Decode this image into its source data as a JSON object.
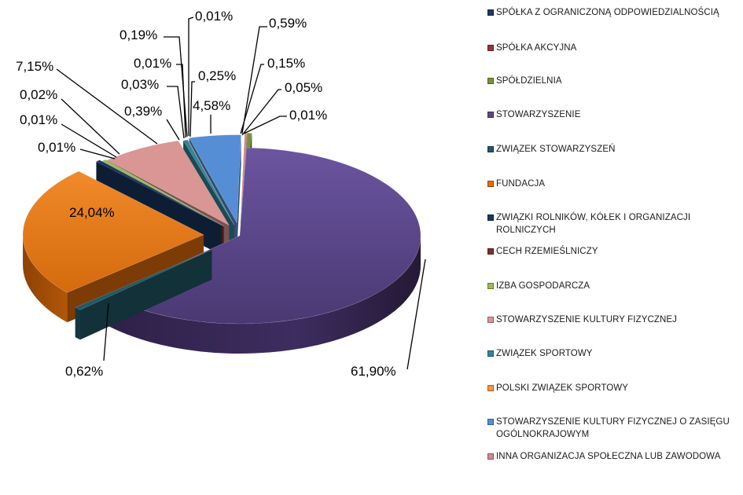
{
  "chart_data": {
    "type": "pie",
    "title": "",
    "legend_position": "right",
    "three_d": true,
    "exploded": true,
    "slices": [
      {
        "name": "SPÓŁKA Z OGRANICZONĄ ODPOWIEDZIALNOŚCIĄ",
        "value": 0.01,
        "label": "0,01%",
        "color": "#1F3864"
      },
      {
        "name": "SPÓŁKA AKCYJNA",
        "value": 0.02,
        "label": "0,02%",
        "color": "#943634"
      },
      {
        "name": "SPÓŁDZIELNIA",
        "value": 0.01,
        "label": "0,01%",
        "color": "#76923C"
      },
      {
        "name": "STOWARZYSZENIE",
        "value": 61.9,
        "label": "61,90%",
        "color": "#5F497A"
      },
      {
        "name": "ZWIĄZEK STOWARZYSZEŃ",
        "value": 0.62,
        "label": "0,62%",
        "color": "#215967"
      },
      {
        "name": "FUNDACJA",
        "value": 24.04,
        "label": "24,04%",
        "color": "#E46C0A"
      },
      {
        "name": "ZWIĄZKI ROLNIKÓW, KÓŁEK I ORGANIZACJI ROLNICZYCH",
        "value": 0.01,
        "label": "0,01%",
        "color": "#17375E"
      },
      {
        "name": "CECH RZEMIEŚLNICZY",
        "value": 0.39,
        "label": "0,39%",
        "color": "#7F2F2C"
      },
      {
        "name": "IZBA GOSPODARCZA",
        "value": 0.01,
        "label": "0,01%",
        "color": "#9BBB59"
      },
      {
        "name": "STOWARZYSZENIE KULTURY FIZYCZNEJ",
        "value": 7.15,
        "label": "7,15%",
        "color": "#D99694"
      },
      {
        "name": "ZWIĄZEK SPORTOWY",
        "value": 0.03,
        "label": "0,03%",
        "color": "#31859C"
      },
      {
        "name": "POLSKI ZWIĄZEK SPORTOWY",
        "value": 0.25,
        "label": "0,25%",
        "color": "#F79646"
      },
      {
        "name": "STOWARZYSZENIE KULTURY FIZYCZNEJ O ZASIĘGU OGÓLNOKRAJOWYM",
        "value": 4.58,
        "label": "4,58%",
        "color": "#558ED5"
      },
      {
        "name": "INNA ORGANIZACJA SPOŁECZNA LUB ZAWODOWA",
        "value": 0.19,
        "label": "0,19%",
        "color": "#D4878C"
      }
    ],
    "extra_labels": [
      "0,01%",
      "0,59%",
      "0,15%",
      "0,05%",
      "0,01%"
    ]
  }
}
